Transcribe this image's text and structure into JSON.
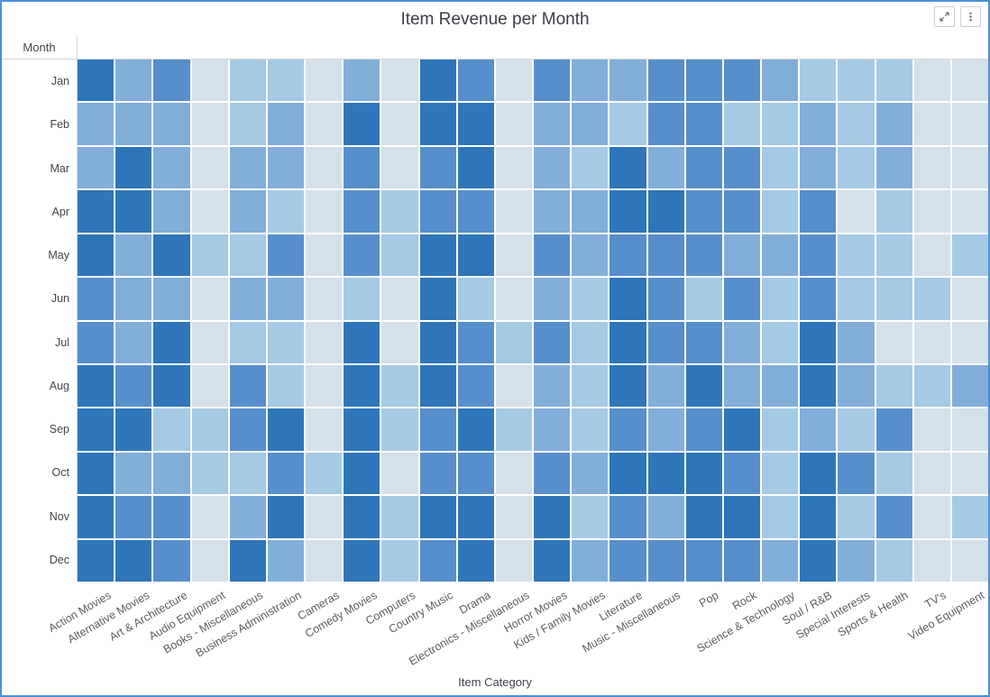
{
  "window": {
    "border_color": "#4a90d8",
    "background": "#ffffff"
  },
  "toolbar": {
    "buttons": [
      {
        "icon": "expand-icon"
      },
      {
        "icon": "vertical-ellipsis-icon"
      }
    ]
  },
  "colors": {
    "title_text": "#3b3f45",
    "axis_text": "#41454b",
    "category_text": "#5a5e63",
    "grid_line": "#d7d7d7",
    "cell_gap": "#ffffff"
  },
  "chart_data": {
    "type": "heatmap",
    "title": "Item Revenue per Month",
    "xlabel": "Item Category",
    "ylabel": "Month",
    "legend": "none",
    "rows": [
      "Jan",
      "Feb",
      "Mar",
      "Apr",
      "May",
      "Jun",
      "Jul",
      "Aug",
      "Sep",
      "Oct",
      "Nov",
      "Dec"
    ],
    "columns": [
      "Action Movies",
      "Alternative Movies",
      "Art & Architecture",
      "Audio Equipment",
      "Books - Miscellaneous",
      "Business Administration",
      "Cameras",
      "Comedy Movies",
      "Computers",
      "Country Music",
      "Drama",
      "Electronics - Miscellaneous",
      "Horror Movies",
      "Kids / Family Movies",
      "Literature",
      "Music - Miscellaneous",
      "Pop",
      "Rock",
      "Science & Technology",
      "Soul / R&B",
      "Special Interests",
      "Sports & Health",
      "TV's",
      "Video Equipment"
    ],
    "palette": [
      "#d5e1ea",
      "#bdd6ea",
      "#a4cae5",
      "#82aeda",
      "#568fcb",
      "#2e76b9"
    ],
    "value_scale": "shade level 1 (lightest) to 6 (darkest); numeric revenue values are not displayed on screen",
    "values": [
      [
        6,
        4,
        5,
        1,
        3,
        3,
        1,
        4,
        1,
        6,
        5,
        1,
        5,
        4,
        4,
        5,
        5,
        5,
        4,
        3,
        3,
        3,
        1,
        1
      ],
      [
        4,
        4,
        4,
        1,
        3,
        4,
        1,
        6,
        1,
        6,
        6,
        1,
        4,
        4,
        3,
        5,
        5,
        3,
        3,
        4,
        3,
        4,
        1,
        1
      ],
      [
        4,
        6,
        4,
        1,
        4,
        4,
        1,
        5,
        1,
        5,
        6,
        1,
        4,
        3,
        6,
        4,
        5,
        5,
        3,
        4,
        3,
        4,
        1,
        1
      ],
      [
        6,
        6,
        4,
        1,
        4,
        3,
        1,
        5,
        3,
        5,
        5,
        1,
        4,
        4,
        6,
        6,
        5,
        5,
        3,
        5,
        1,
        3,
        1,
        1
      ],
      [
        6,
        4,
        6,
        3,
        3,
        5,
        1,
        5,
        3,
        6,
        6,
        1,
        5,
        4,
        5,
        5,
        5,
        4,
        4,
        5,
        3,
        3,
        1,
        3
      ],
      [
        5,
        4,
        4,
        1,
        4,
        4,
        1,
        3,
        1,
        6,
        3,
        1,
        4,
        3,
        6,
        5,
        3,
        5,
        3,
        5,
        3,
        3,
        3,
        1
      ],
      [
        5,
        4,
        6,
        1,
        3,
        3,
        1,
        6,
        1,
        6,
        5,
        3,
        5,
        3,
        6,
        5,
        5,
        4,
        3,
        6,
        4,
        1,
        1,
        1
      ],
      [
        6,
        5,
        6,
        1,
        5,
        3,
        1,
        6,
        3,
        6,
        5,
        1,
        4,
        3,
        6,
        4,
        6,
        4,
        4,
        6,
        4,
        3,
        3,
        4
      ],
      [
        6,
        6,
        3,
        3,
        5,
        6,
        1,
        6,
        3,
        5,
        6,
        3,
        4,
        3,
        5,
        4,
        5,
        6,
        3,
        4,
        3,
        5,
        1,
        1
      ],
      [
        6,
        4,
        4,
        3,
        3,
        5,
        3,
        6,
        1,
        5,
        5,
        1,
        5,
        4,
        6,
        6,
        6,
        5,
        3,
        6,
        5,
        3,
        1,
        1
      ],
      [
        6,
        5,
        5,
        1,
        4,
        6,
        1,
        6,
        3,
        6,
        6,
        1,
        6,
        3,
        5,
        4,
        6,
        6,
        3,
        6,
        3,
        5,
        1,
        3
      ],
      [
        6,
        6,
        5,
        1,
        6,
        4,
        1,
        6,
        3,
        5,
        6,
        1,
        6,
        4,
        5,
        5,
        5,
        5,
        4,
        6,
        4,
        3,
        1,
        1
      ]
    ]
  }
}
